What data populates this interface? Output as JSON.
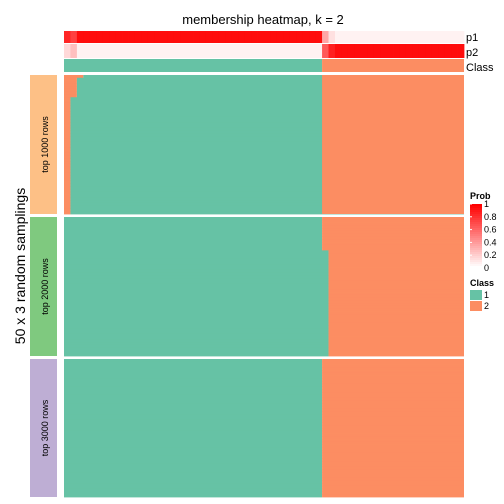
{
  "chart_data": {
    "type": "heatmap",
    "title": "membership heatmap, k = 2",
    "ylabel": "50 x 3 random samplings",
    "top_annotations": [
      "p1",
      "p2",
      "Class"
    ],
    "row_groups": [
      "top 1000 rows",
      "top 2000 rows",
      "top 3000 rows"
    ],
    "legend_prob": {
      "title": "Prob",
      "ticks": [
        "1",
        "0.8",
        "0.6",
        "0.4",
        "0.2",
        "0"
      ]
    },
    "legend_class": {
      "title": "Class",
      "items": [
        "1",
        "2"
      ]
    },
    "colors": {
      "class1": "#66C2A5",
      "class2": "#FC8D62",
      "prob_high": "#FF0000",
      "prob_low": "#FFFFFF",
      "group1": "#FDC086",
      "group2": "#7FC97F",
      "group3": "#BEAED4"
    },
    "n_columns": 62,
    "class1_columns": 40,
    "p1_values": [
      0.85,
      0.75,
      0.95,
      0.95,
      0.95,
      0.95,
      0.95,
      0.95,
      0.95,
      0.95,
      0.95,
      0.95,
      0.95,
      0.95,
      0.95,
      0.95,
      0.95,
      0.95,
      0.95,
      0.95,
      0.95,
      0.95,
      0.95,
      0.95,
      0.95,
      0.95,
      0.95,
      0.95,
      0.95,
      0.95,
      0.95,
      0.95,
      0.95,
      0.95,
      0.95,
      0.95,
      0.95,
      0.95,
      0.95,
      0.95,
      0.35,
      0.12,
      0.05,
      0.05,
      0.05,
      0.05,
      0.05,
      0.05,
      0.05,
      0.05,
      0.05,
      0.05,
      0.05,
      0.05,
      0.05,
      0.05,
      0.05,
      0.05,
      0.05,
      0.05,
      0.05,
      0.05
    ],
    "p2_values": [
      0.15,
      0.25,
      0.05,
      0.05,
      0.05,
      0.05,
      0.05,
      0.05,
      0.05,
      0.05,
      0.05,
      0.05,
      0.05,
      0.05,
      0.05,
      0.05,
      0.05,
      0.05,
      0.05,
      0.05,
      0.05,
      0.05,
      0.05,
      0.05,
      0.05,
      0.05,
      0.05,
      0.05,
      0.05,
      0.05,
      0.05,
      0.05,
      0.05,
      0.05,
      0.05,
      0.05,
      0.05,
      0.05,
      0.05,
      0.05,
      0.65,
      0.88,
      0.95,
      0.95,
      0.95,
      0.95,
      0.95,
      0.95,
      0.95,
      0.95,
      0.95,
      0.95,
      0.95,
      0.95,
      0.95,
      0.95,
      0.95,
      0.95,
      0.95,
      0.95,
      0.95,
      0.95
    ],
    "groups": [
      {
        "label": "top 1000 rows",
        "boundaries": [
          3,
          2,
          2,
          2,
          2,
          2,
          2,
          2,
          1,
          1,
          1,
          1,
          1,
          1,
          1,
          1,
          1,
          1,
          1,
          1,
          1,
          1,
          1,
          1,
          1,
          1,
          1,
          1,
          1,
          1,
          1,
          1,
          1,
          1,
          1,
          1,
          1,
          1,
          1,
          1,
          1,
          1,
          1,
          1,
          1,
          1,
          1,
          1,
          1,
          1
        ]
      },
      {
        "label": "top 2000 rows",
        "boundaries": [
          40,
          40,
          40,
          40,
          40,
          40,
          40,
          40,
          40,
          40,
          40,
          40,
          41,
          41,
          41,
          41,
          41,
          41,
          41,
          41,
          41,
          41,
          41,
          41,
          41,
          41,
          41,
          41,
          41,
          41,
          41,
          41,
          41,
          41,
          41,
          41,
          41,
          41,
          41,
          41,
          41,
          41,
          41,
          41,
          41,
          41,
          41,
          41,
          41,
          41
        ]
      },
      {
        "label": "top 3000 rows",
        "boundaries": [
          40,
          40,
          40,
          40,
          40,
          40,
          40,
          40,
          40,
          40,
          40,
          40,
          40,
          40,
          40,
          40,
          40,
          40,
          40,
          40,
          40,
          40,
          40,
          40,
          40,
          40,
          40,
          40,
          40,
          40,
          40,
          40,
          40,
          40,
          40,
          40,
          40,
          40,
          40,
          40,
          40,
          40,
          40,
          40,
          40,
          40,
          40,
          40,
          40,
          40
        ]
      }
    ]
  }
}
